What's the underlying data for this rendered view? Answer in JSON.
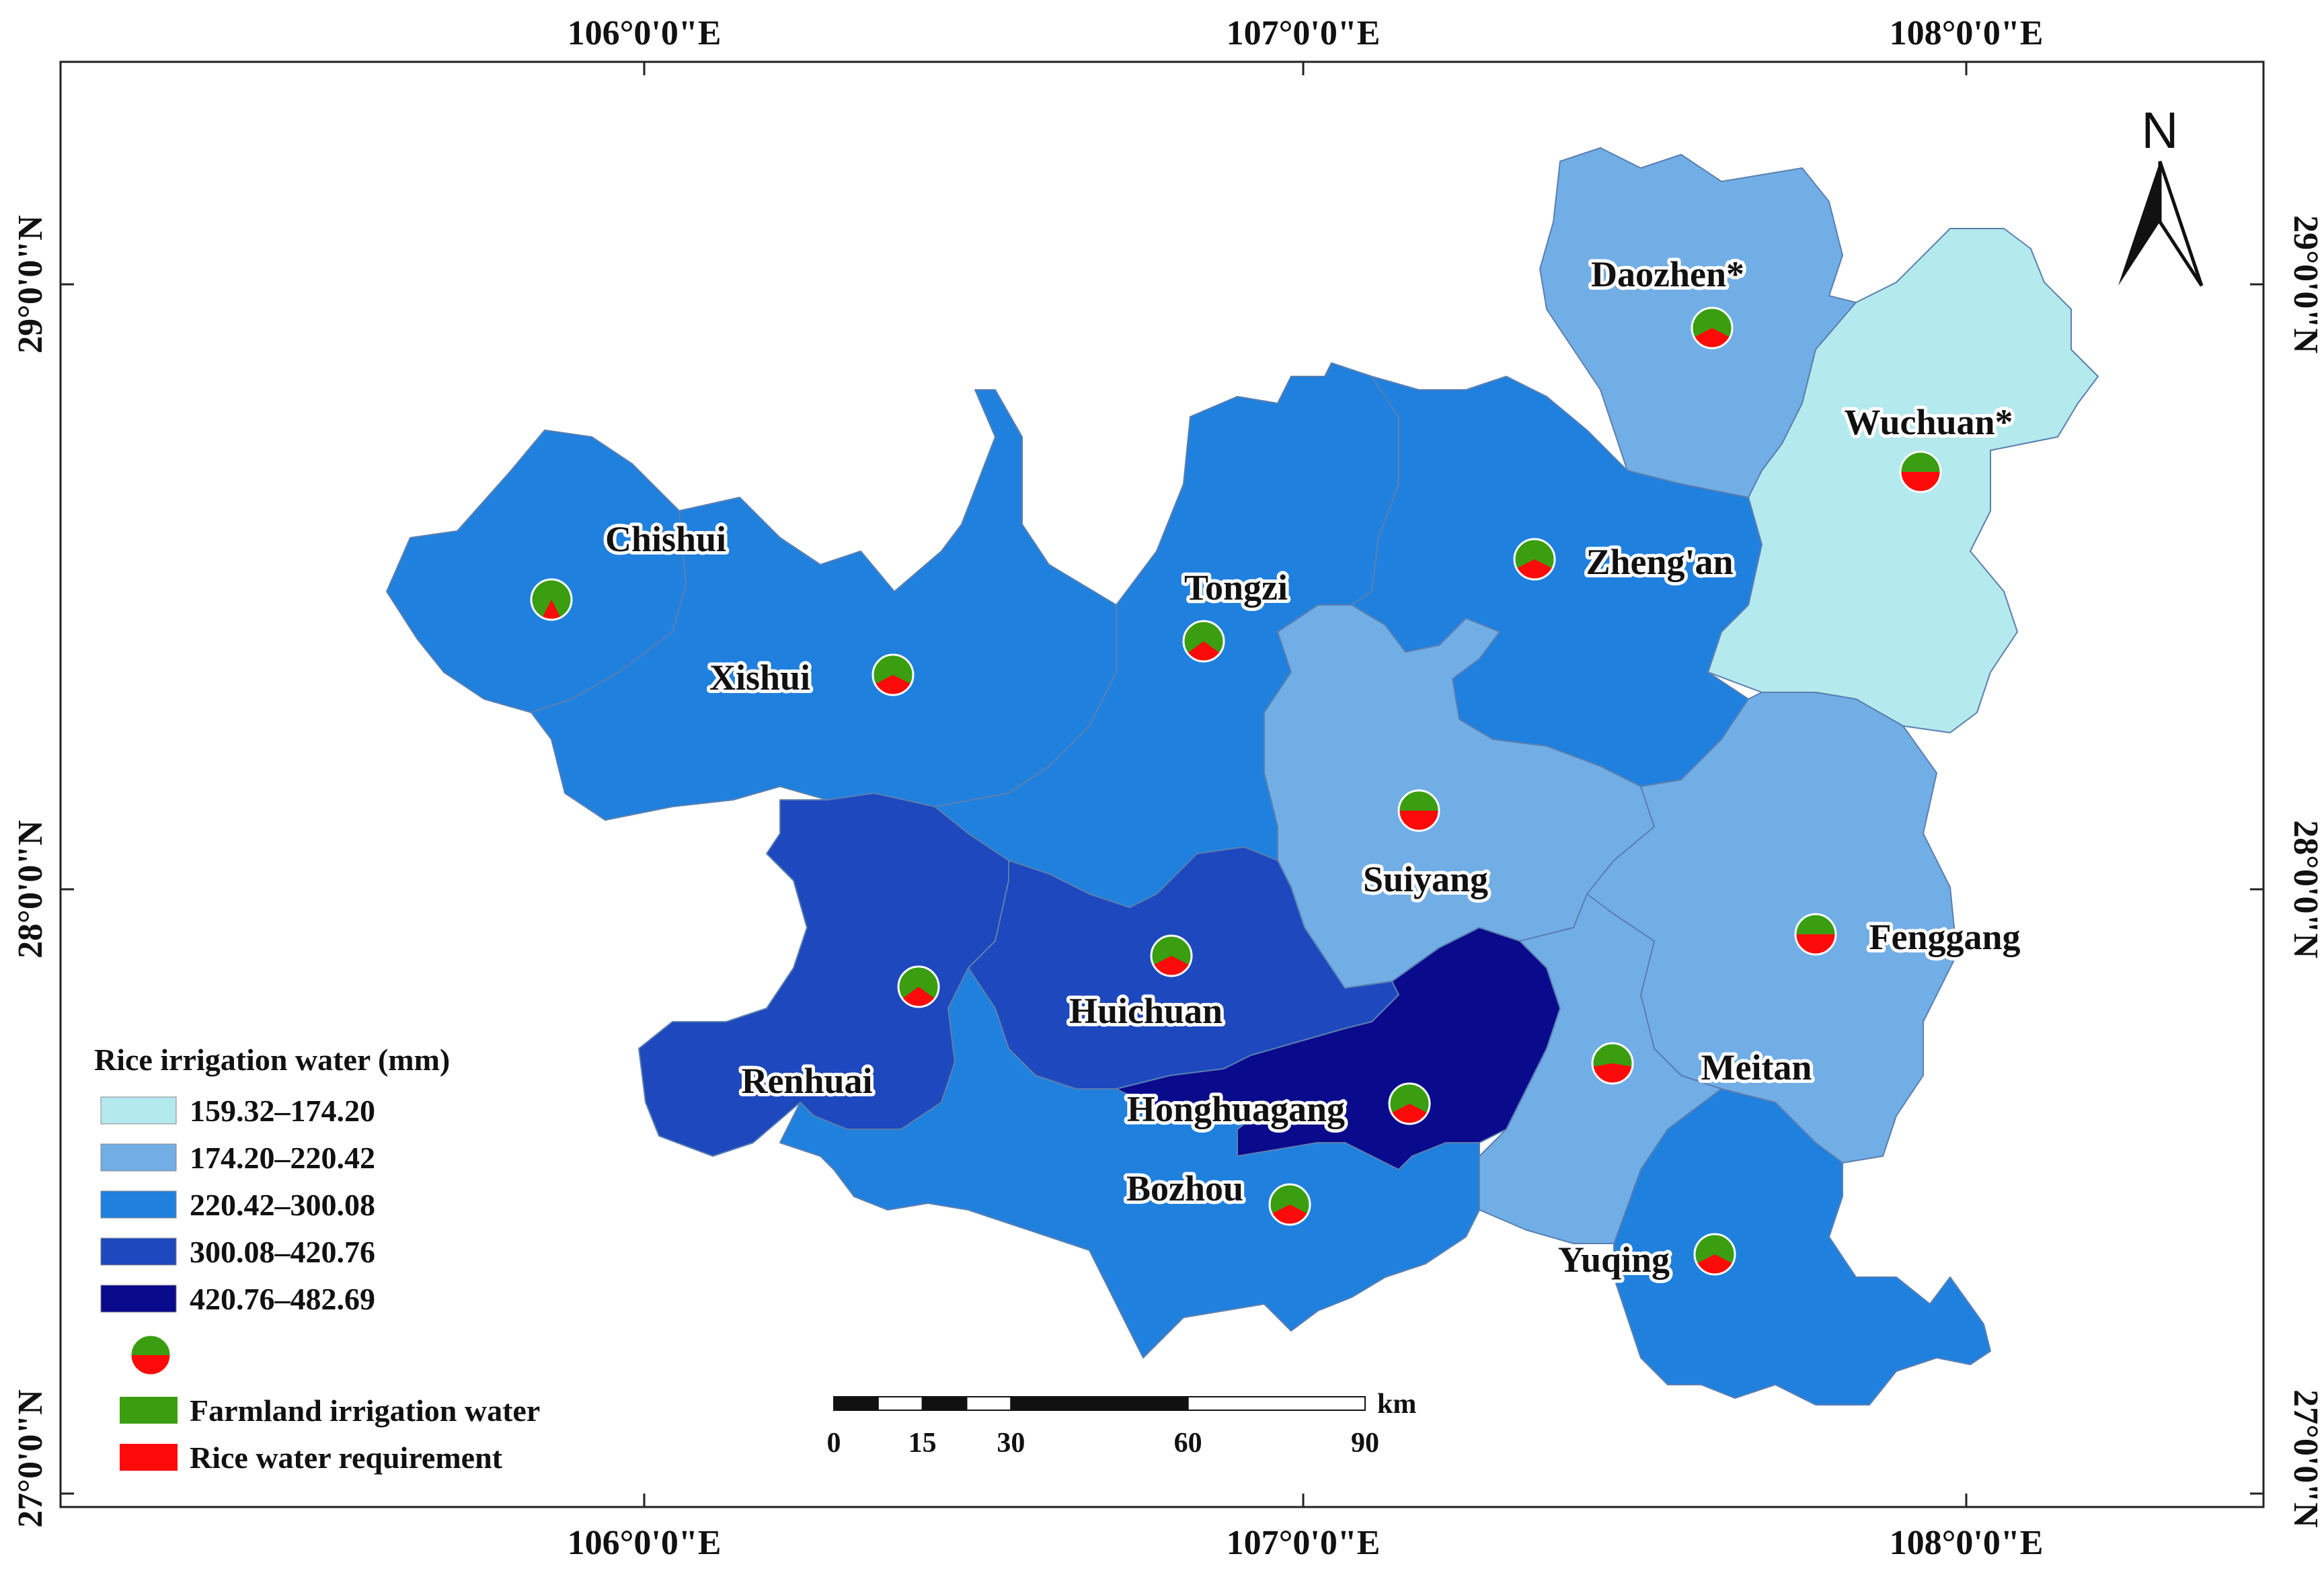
{
  "grid": {
    "top_lon_labels": [
      "106°0'0\"E",
      "107°0'0\"E",
      "108°0'0\"E"
    ],
    "bottom_lon_labels": [
      "106°0'0\"E",
      "107°0'0\"E",
      "108°0'0\"E"
    ],
    "left_lat_labels": [
      "29°0'0\"N",
      "28°0'0\"N",
      "27°0'0\"N"
    ],
    "right_lat_labels": [
      "29°0'0\"N",
      "28°0'0\"N",
      "27°0'0\"N"
    ]
  },
  "north_arrow": {
    "label": "N",
    "icon": "north-arrow-icon"
  },
  "legend": {
    "title": "Rice irrigation water (mm)",
    "classes": [
      {
        "label": "159.32–174.20",
        "color": "#b4e9ee"
      },
      {
        "label": "174.20–220.42",
        "color": "#72aee6"
      },
      {
        "label": "220.42–300.08",
        "color": "#2080de"
      },
      {
        "label": "300.08–420.76",
        "color": "#1e48bd"
      },
      {
        "label": "420.76–482.69",
        "color": "#0a0a8c"
      }
    ],
    "pie_items": [
      {
        "label": "Farmland irrigation water",
        "color": "#3a9e10"
      },
      {
        "label": "Rice water requirement",
        "color": "#ff0a0a"
      }
    ]
  },
  "scale_bar": {
    "unit": "km",
    "ticks": [
      "0",
      "15",
      "30",
      "60",
      "90"
    ]
  },
  "counties": [
    {
      "name": "Chishui",
      "class": 2,
      "pie_red_fraction": 0.15
    },
    {
      "name": "Xishui",
      "class": 2,
      "pie_red_fraction": 0.35
    },
    {
      "name": "Tongzi",
      "class": 2,
      "pie_red_fraction": 0.3
    },
    {
      "name": "Zheng'an",
      "class": 2,
      "pie_red_fraction": 0.35
    },
    {
      "name": "Daozhen*",
      "class": 1,
      "pie_red_fraction": 0.35
    },
    {
      "name": "Wuchuan*",
      "class": 0,
      "pie_red_fraction": 0.5
    },
    {
      "name": "Suiyang",
      "class": 1,
      "pie_red_fraction": 0.5
    },
    {
      "name": "Fenggang",
      "class": 1,
      "pie_red_fraction": 0.5
    },
    {
      "name": "Meitan",
      "class": 1,
      "pie_red_fraction": 0.45
    },
    {
      "name": "Renhuai",
      "class": 3,
      "pie_red_fraction": 0.3
    },
    {
      "name": "Huichuan",
      "class": 3,
      "pie_red_fraction": 0.35
    },
    {
      "name": "Honghuagang",
      "class": 4,
      "pie_red_fraction": 0.35
    },
    {
      "name": "Bozhou",
      "class": 2,
      "pie_red_fraction": 0.35
    },
    {
      "name": "Yuqing",
      "class": 2,
      "pie_red_fraction": 0.35
    }
  ]
}
